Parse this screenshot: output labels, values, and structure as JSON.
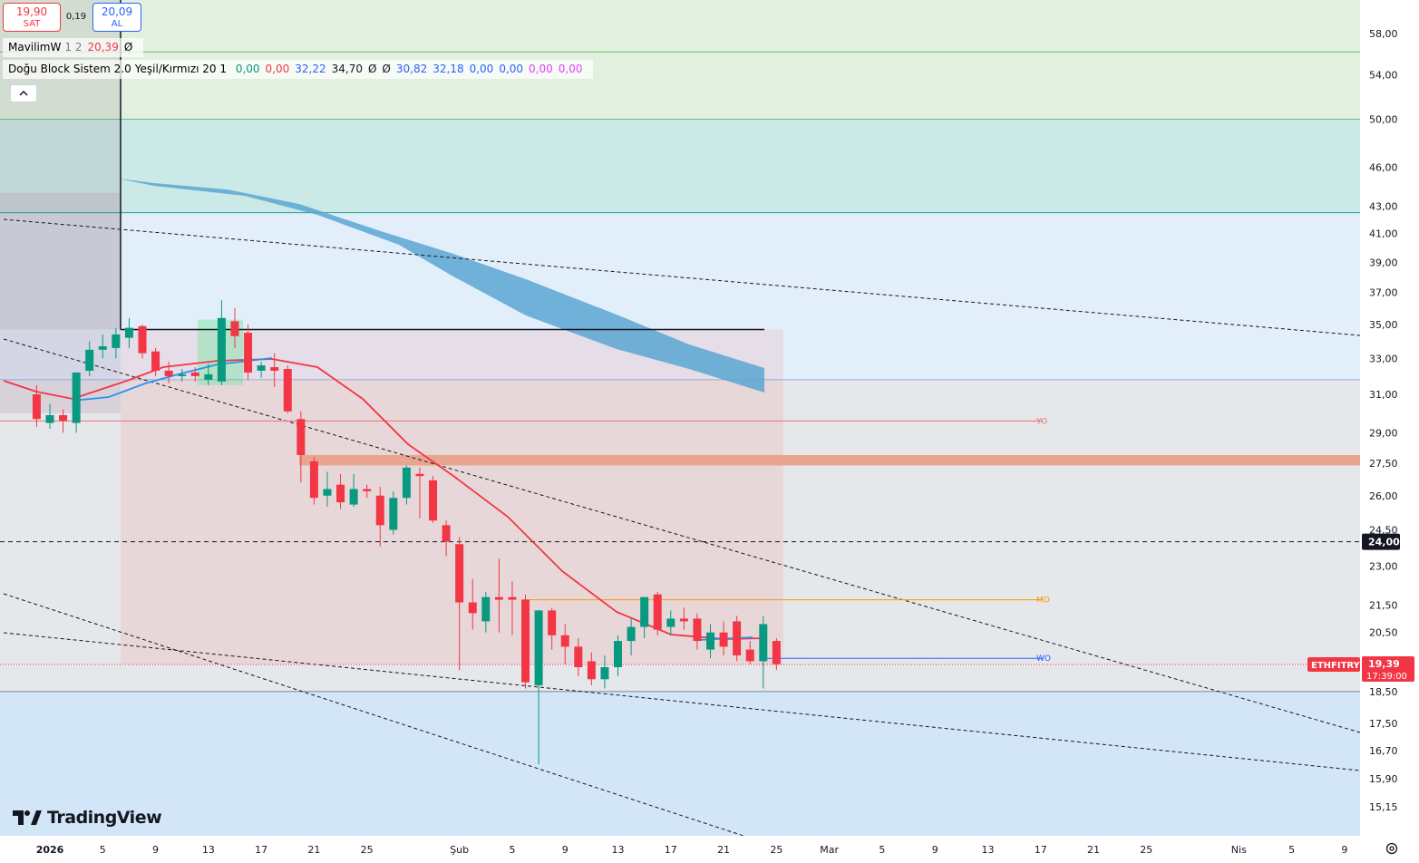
{
  "header": {
    "sell_price": "19,90",
    "sell_label": "SAT",
    "spread": "0,19",
    "buy_price": "20,09",
    "buy_label": "AL"
  },
  "indicator1": {
    "name": "MavilimW",
    "params": "1 2",
    "value": "20,39",
    "extra": "Ø",
    "value_color": "#f23645"
  },
  "indicator2": {
    "name": "Doğu Block Sistem 2.0",
    "params": "Yeşil/Kırmızı 20 1",
    "values": [
      {
        "text": "0,00",
        "color": "#089981"
      },
      {
        "text": "0,00",
        "color": "#f23645"
      },
      {
        "text": "32,22",
        "color": "#2962ff"
      },
      {
        "text": "34,70",
        "color": "#131722"
      },
      {
        "text": "Ø",
        "color": "#131722"
      },
      {
        "text": "Ø",
        "color": "#131722"
      },
      {
        "text": "30,82",
        "color": "#2962ff"
      },
      {
        "text": "32,18",
        "color": "#2962ff"
      },
      {
        "text": "0,00",
        "color": "#2962ff"
      },
      {
        "text": "0,00",
        "color": "#2962ff"
      },
      {
        "text": "0,00",
        "color": "#e040fb"
      },
      {
        "text": "0,00",
        "color": "#e040fb"
      }
    ]
  },
  "collapse_icon": "chevron-up-icon",
  "logo": {
    "text": "TradingView"
  },
  "settings_icon": "gear-icon",
  "chart_data": {
    "type": "candlestick",
    "symbol": "ETHFITRY",
    "last_price": "19,39",
    "countdown": "17:39:00",
    "price_axis": {
      "ticks": [
        "58,00",
        "54,00",
        "50,00",
        "46,00",
        "43,00",
        "41,00",
        "39,00",
        "37,00",
        "35,00",
        "33,00",
        "31,00",
        "29,00",
        "27,50",
        "26,00",
        "24,50",
        "23,00",
        "21,50",
        "20,50",
        "17,50",
        "16,70",
        "15,90",
        "15,15"
      ],
      "tick_values": [
        58.0,
        54.0,
        50.0,
        46.0,
        43.0,
        41.0,
        39.0,
        37.0,
        35.0,
        33.0,
        31.0,
        29.0,
        27.5,
        26.0,
        24.5,
        23.0,
        21.5,
        20.5,
        17.5,
        16.7,
        15.9,
        15.15
      ],
      "extra_ticks": [
        {
          "label": "18,50",
          "value": 18.5
        }
      ],
      "scale": "log",
      "range": [
        14.4,
        61.5
      ]
    },
    "time_axis": {
      "labels": [
        {
          "text": "2026",
          "bold": true,
          "day": 0
        },
        {
          "text": "5",
          "day": 4
        },
        {
          "text": "9",
          "day": 8
        },
        {
          "text": "13",
          "day": 12
        },
        {
          "text": "17",
          "day": 16
        },
        {
          "text": "21",
          "day": 20
        },
        {
          "text": "25",
          "day": 24
        },
        {
          "text": "Şub",
          "day": 31
        },
        {
          "text": "5",
          "day": 35
        },
        {
          "text": "9",
          "day": 39
        },
        {
          "text": "13",
          "day": 43
        },
        {
          "text": "17",
          "day": 47
        },
        {
          "text": "21",
          "day": 51
        },
        {
          "text": "25",
          "day": 55
        },
        {
          "text": "Mar",
          "day": 59
        },
        {
          "text": "5",
          "day": 63
        },
        {
          "text": "9",
          "day": 67
        },
        {
          "text": "13",
          "day": 71
        },
        {
          "text": "17",
          "day": 75
        },
        {
          "text": "21",
          "day": 79
        },
        {
          "text": "25",
          "day": 83
        },
        {
          "text": "Nis",
          "day": 90
        },
        {
          "text": "5",
          "day": 94
        },
        {
          "text": "9",
          "day": 98
        }
      ]
    },
    "candles": [
      {
        "day": -1,
        "o": 31.0,
        "h": 31.5,
        "l": 29.3,
        "c": 29.7
      },
      {
        "day": 0,
        "o": 29.5,
        "h": 30.5,
        "l": 29.2,
        "c": 29.9
      },
      {
        "day": 1,
        "o": 29.9,
        "h": 30.2,
        "l": 29.0,
        "c": 29.6
      },
      {
        "day": 2,
        "o": 29.5,
        "h": 32.2,
        "l": 29.0,
        "c": 32.2
      },
      {
        "day": 3,
        "o": 32.3,
        "h": 34.0,
        "l": 32.0,
        "c": 33.5
      },
      {
        "day": 4,
        "o": 33.5,
        "h": 34.4,
        "l": 33.0,
        "c": 33.7
      },
      {
        "day": 5,
        "o": 33.6,
        "h": 34.8,
        "l": 33.0,
        "c": 34.4
      },
      {
        "day": 6,
        "o": 34.2,
        "h": 35.4,
        "l": 33.6,
        "c": 34.8
      },
      {
        "day": 7,
        "o": 34.9,
        "h": 35.0,
        "l": 33.0,
        "c": 33.3
      },
      {
        "day": 8,
        "o": 33.4,
        "h": 33.6,
        "l": 32.0,
        "c": 32.3
      },
      {
        "day": 9,
        "o": 32.3,
        "h": 32.8,
        "l": 31.6,
        "c": 32.0
      },
      {
        "day": 10,
        "o": 32.0,
        "h": 32.4,
        "l": 31.7,
        "c": 32.1
      },
      {
        "day": 11,
        "o": 32.2,
        "h": 32.5,
        "l": 31.7,
        "c": 32.0
      },
      {
        "day": 12,
        "o": 31.8,
        "h": 32.7,
        "l": 31.5,
        "c": 32.1
      },
      {
        "day": 13,
        "o": 31.7,
        "h": 36.5,
        "l": 31.5,
        "c": 35.4
      },
      {
        "day": 14,
        "o": 35.2,
        "h": 36.0,
        "l": 33.6,
        "c": 34.3
      },
      {
        "day": 15,
        "o": 34.5,
        "h": 35.0,
        "l": 31.8,
        "c": 32.2
      },
      {
        "day": 16,
        "o": 32.3,
        "h": 32.8,
        "l": 31.9,
        "c": 32.6
      },
      {
        "day": 17,
        "o": 32.5,
        "h": 33.3,
        "l": 31.4,
        "c": 32.3
      },
      {
        "day": 18,
        "o": 32.4,
        "h": 32.6,
        "l": 30.0,
        "c": 30.1
      },
      {
        "day": 19,
        "o": 29.7,
        "h": 30.1,
        "l": 26.6,
        "c": 27.9
      },
      {
        "day": 20,
        "o": 27.6,
        "h": 27.8,
        "l": 25.6,
        "c": 25.9
      },
      {
        "day": 21,
        "o": 26.0,
        "h": 27.1,
        "l": 25.5,
        "c": 26.3
      },
      {
        "day": 22,
        "o": 26.5,
        "h": 27.0,
        "l": 25.4,
        "c": 25.7
      },
      {
        "day": 23,
        "o": 25.6,
        "h": 27.0,
        "l": 25.5,
        "c": 26.3
      },
      {
        "day": 24,
        "o": 26.3,
        "h": 26.5,
        "l": 25.9,
        "c": 26.2
      },
      {
        "day": 25,
        "o": 26.0,
        "h": 26.4,
        "l": 23.8,
        "c": 24.7
      },
      {
        "day": 26,
        "o": 24.5,
        "h": 26.2,
        "l": 24.3,
        "c": 25.9
      },
      {
        "day": 27,
        "o": 25.9,
        "h": 27.4,
        "l": 25.6,
        "c": 27.3
      },
      {
        "day": 28,
        "o": 27.0,
        "h": 27.3,
        "l": 25.0,
        "c": 26.9
      },
      {
        "day": 29,
        "o": 26.7,
        "h": 26.9,
        "l": 24.8,
        "c": 24.9
      },
      {
        "day": 30,
        "o": 24.7,
        "h": 24.9,
        "l": 23.4,
        "c": 24.0
      },
      {
        "day": 31,
        "o": 23.9,
        "h": 24.2,
        "l": 19.2,
        "c": 21.6
      },
      {
        "day": 32,
        "o": 21.6,
        "h": 22.5,
        "l": 20.6,
        "c": 21.2
      },
      {
        "day": 33,
        "o": 20.9,
        "h": 22.0,
        "l": 20.5,
        "c": 21.8
      },
      {
        "day": 34,
        "o": 21.8,
        "h": 23.3,
        "l": 20.5,
        "c": 21.7
      },
      {
        "day": 35,
        "o": 21.8,
        "h": 22.4,
        "l": 20.4,
        "c": 21.7
      },
      {
        "day": 36,
        "o": 21.7,
        "h": 21.9,
        "l": 18.6,
        "c": 18.8
      },
      {
        "day": 37,
        "o": 18.7,
        "h": 21.3,
        "l": 16.3,
        "c": 21.3
      },
      {
        "day": 38,
        "o": 21.3,
        "h": 21.4,
        "l": 19.9,
        "c": 20.4
      },
      {
        "day": 39,
        "o": 20.4,
        "h": 20.8,
        "l": 19.4,
        "c": 20.0
      },
      {
        "day": 40,
        "o": 20.0,
        "h": 20.3,
        "l": 19.0,
        "c": 19.3
      },
      {
        "day": 41,
        "o": 19.5,
        "h": 19.8,
        "l": 18.7,
        "c": 18.9
      },
      {
        "day": 42,
        "o": 18.9,
        "h": 19.7,
        "l": 18.6,
        "c": 19.3
      },
      {
        "day": 43,
        "o": 19.3,
        "h": 20.4,
        "l": 19.0,
        "c": 20.2
      },
      {
        "day": 44,
        "o": 20.2,
        "h": 21.0,
        "l": 19.7,
        "c": 20.7
      },
      {
        "day": 45,
        "o": 20.7,
        "h": 21.8,
        "l": 20.3,
        "c": 21.8
      },
      {
        "day": 46,
        "o": 21.9,
        "h": 22.0,
        "l": 20.4,
        "c": 20.6
      },
      {
        "day": 47,
        "o": 20.7,
        "h": 21.3,
        "l": 20.4,
        "c": 21.0
      },
      {
        "day": 48,
        "o": 21.0,
        "h": 21.4,
        "l": 20.6,
        "c": 20.9
      },
      {
        "day": 49,
        "o": 21.0,
        "h": 21.2,
        "l": 19.9,
        "c": 20.2
      },
      {
        "day": 50,
        "o": 19.9,
        "h": 20.8,
        "l": 19.6,
        "c": 20.5
      },
      {
        "day": 51,
        "o": 20.5,
        "h": 20.9,
        "l": 19.7,
        "c": 20.0
      },
      {
        "day": 52,
        "o": 20.9,
        "h": 21.1,
        "l": 19.5,
        "c": 19.7
      },
      {
        "day": 53,
        "o": 19.9,
        "h": 20.2,
        "l": 19.4,
        "c": 19.5
      },
      {
        "day": 54,
        "o": 19.5,
        "h": 21.1,
        "l": 18.6,
        "c": 20.8
      },
      {
        "day": 55,
        "o": 20.2,
        "h": 20.3,
        "l": 19.2,
        "c": 19.4
      }
    ],
    "price_labels": [
      {
        "value": "24,00",
        "price": 24.0
      },
      {
        "value": "19,39",
        "price": 19.39
      }
    ],
    "level_tags": [
      {
        "text": "YO",
        "price": 29.6
      },
      {
        "text": "MO",
        "price": 21.7
      },
      {
        "text": "WO",
        "price": 19.6
      }
    ],
    "colors": {
      "up": "#089981",
      "down": "#f23645",
      "ma_red": "#f23645",
      "ma_blue": "#2196f3",
      "band": "#4a9fd0"
    }
  }
}
